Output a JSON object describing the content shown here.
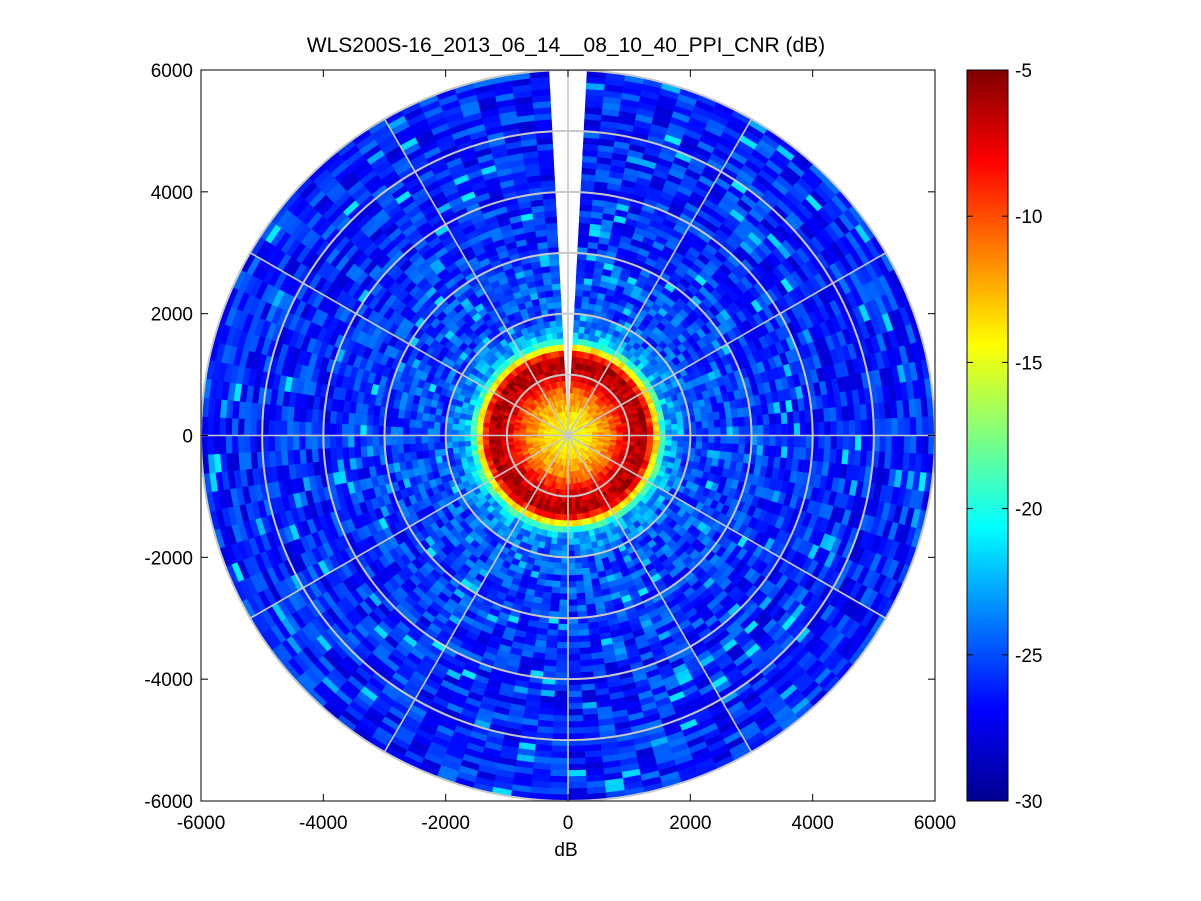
{
  "chart_data": {
    "type": "heatmap",
    "subtype": "polar PPI scan",
    "title": "WLS200S-16_2013_06_14__08_10_40_PPI_CNR (dB)",
    "xlabel": "dB",
    "ylabel": "",
    "xlim": [
      -6000,
      6000
    ],
    "ylim": [
      -6000,
      6000
    ],
    "xticks": [
      "-6000",
      "-4000",
      "-2000",
      "0",
      "2000",
      "4000",
      "6000"
    ],
    "yticks": [
      "6000",
      "4000",
      "2000",
      "0",
      "-2000",
      "-4000",
      "-6000"
    ],
    "colorbar": {
      "colormap": "jet",
      "range": [
        -30,
        -5
      ],
      "ticks": [
        "-5",
        "-10",
        "-15",
        "-20",
        "-25",
        "-30"
      ]
    },
    "max_range": 6000,
    "range_rings": [
      1000,
      2000,
      3000,
      4000,
      5000,
      6000
    ],
    "spoke_angles_deg": [
      0,
      30,
      60,
      90,
      120,
      150,
      180,
      210,
      240,
      270,
      300,
      330
    ],
    "blanked_sector_deg": [
      -4,
      4
    ],
    "radial_profile": [
      {
        "range": 0,
        "cnr": -15
      },
      {
        "range": 300,
        "cnr": -14
      },
      {
        "range": 700,
        "cnr": -11
      },
      {
        "range": 1000,
        "cnr": -7
      },
      {
        "range": 1300,
        "cnr": -6
      },
      {
        "range": 1600,
        "cnr": -22
      },
      {
        "range": 2000,
        "cnr": -25
      },
      {
        "range": 4000,
        "cnr": -26
      },
      {
        "range": 6000,
        "cnr": -26
      }
    ]
  }
}
